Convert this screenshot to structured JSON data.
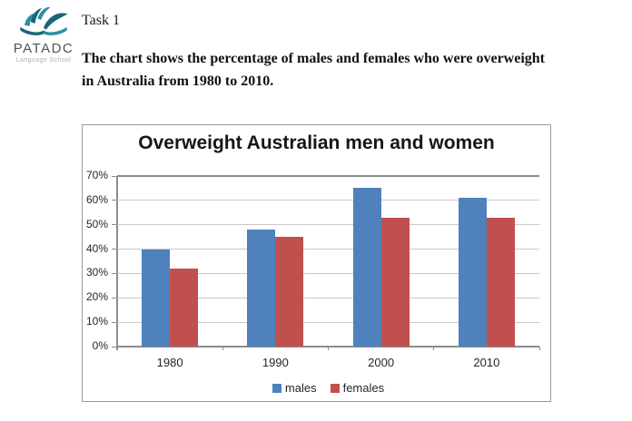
{
  "logo": {
    "name": "PATADC",
    "subtitle": "Language School",
    "icon": "open-book-with-leaves",
    "color_teal": "#2A8FA4",
    "color_teal_dark": "#1C6579"
  },
  "task": {
    "title": "Task 1"
  },
  "description": {
    "lines": [
      "The chart shows the percentage of males and females who were overweight",
      "in Australia from 1980 to 2010."
    ]
  },
  "chart_data": {
    "type": "bar",
    "title": "Overweight Australian men and women",
    "categories": [
      "1980",
      "1990",
      "2000",
      "2010"
    ],
    "series": [
      {
        "name": "males",
        "color": "#4F81BD",
        "values": [
          40,
          48,
          65,
          61
        ]
      },
      {
        "name": "females",
        "color": "#C0504D",
        "values": [
          32,
          45,
          53,
          53
        ]
      }
    ],
    "xlabel": "",
    "ylabel": "",
    "ylim": [
      0,
      70
    ],
    "ytick_step": 10,
    "ytick_labels": [
      "0%",
      "10%",
      "20%",
      "30%",
      "40%",
      "50%",
      "60%",
      "70%"
    ],
    "grid": true,
    "legend_position": "bottom"
  }
}
